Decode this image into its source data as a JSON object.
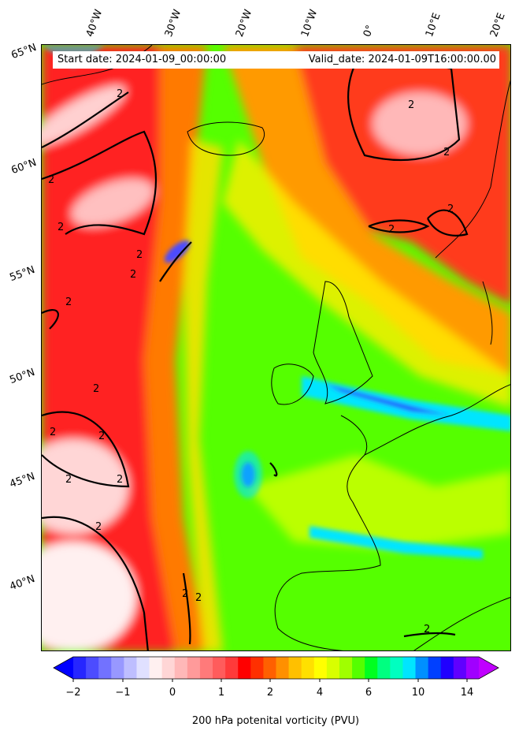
{
  "map": {
    "start_label": "Start date: 2024-01-09_00:00:00",
    "valid_label": "Valid_date: 2024-01-09T16:00:00.00",
    "lon_labels": [
      "40°W",
      "30°W",
      "20°W",
      "10°W",
      "0°",
      "10°E",
      "20°E"
    ],
    "lat_labels": [
      "65°N",
      "60°N",
      "55°N",
      "50°N",
      "45°N",
      "40°N"
    ],
    "contour_label": "2",
    "colors": {
      "background_green": "#55ff00",
      "high_red": "#ff2020",
      "light_pink": "#ffd0d0",
      "yellow": "#ffff00",
      "cyan": "#00e5ff",
      "blue": "#2040ff"
    }
  },
  "colorbar": {
    "title": "200 hPa potenital vorticity (PVU)",
    "tick_labels": [
      "−2",
      "−1",
      "0",
      "1",
      "2",
      "4",
      "6",
      "10",
      "14"
    ],
    "colors": [
      "#0000ff",
      "#2626ff",
      "#4c4cff",
      "#7272ff",
      "#9898ff",
      "#bebeff",
      "#e0e0ff",
      "#fff0f0",
      "#ffd6d6",
      "#ffb8b8",
      "#ff9a9a",
      "#ff7a7a",
      "#ff5c5c",
      "#ff3a3a",
      "#ff0000",
      "#ff3000",
      "#ff6000",
      "#ff9000",
      "#ffc000",
      "#ffe000",
      "#ffff00",
      "#d8ff00",
      "#a0ff00",
      "#55ff00",
      "#00ff20",
      "#00ff80",
      "#00ffc0",
      "#00e5ff",
      "#0090ff",
      "#0040ff",
      "#2000ff",
      "#6000ff",
      "#a000ff",
      "#c000ff"
    ]
  }
}
